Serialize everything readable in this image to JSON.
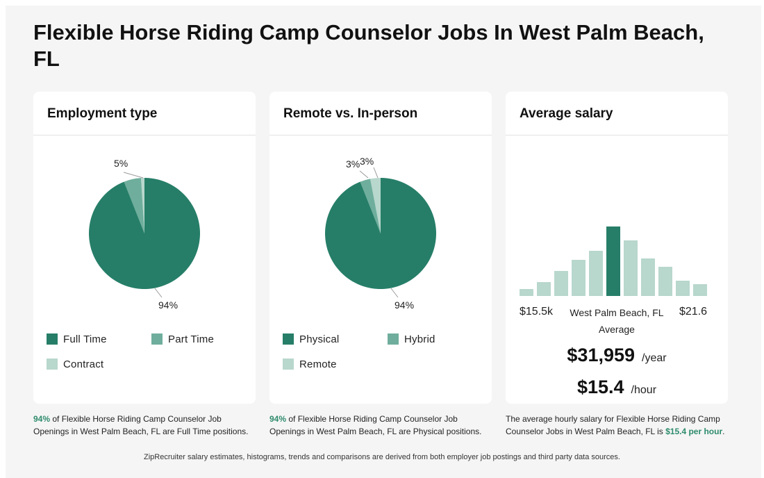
{
  "page": {
    "title": "Flexible Horse Riding Camp Counselor Jobs In West Palm Beach, FL",
    "footer": "ZipRecruiter salary estimates, histograms, trends and comparisons are derived from both employer job postings and third party data sources."
  },
  "colors": {
    "dark": "#267e68",
    "medium": "#6fae9c",
    "light": "#b8d7cd",
    "accent_text": "#2e8b6d"
  },
  "employment": {
    "title": "Employment type",
    "legend": [
      "Full Time",
      "Part Time",
      "Contract"
    ],
    "labels": {
      "large": "94%",
      "small": "5%"
    },
    "caption_pct": "94%",
    "caption_rest": " of Flexible Horse Riding Camp Counselor Job Openings in West Palm Beach, FL are Full Time positions.",
    "chart_data": {
      "type": "pie",
      "categories": [
        "Full Time",
        "Part Time",
        "Contract"
      ],
      "values": [
        94,
        5,
        1
      ]
    }
  },
  "remote": {
    "title": "Remote vs. In-person",
    "legend": [
      "Physical",
      "Hybrid",
      "Remote"
    ],
    "labels": {
      "large": "94%",
      "small_a": "3%",
      "small_b": "3%"
    },
    "caption_pct": "94%",
    "caption_rest": " of Flexible Horse Riding Camp Counselor Job Openings in West Palm Beach, FL are Physical positions.",
    "chart_data": {
      "type": "pie",
      "categories": [
        "Physical",
        "Hybrid",
        "Remote"
      ],
      "values": [
        94,
        3,
        3
      ]
    }
  },
  "salary": {
    "title": "Average salary",
    "range_low": "$15.5k",
    "range_high": "$21.6",
    "location": "West Palm Beach, FL",
    "average_label": "Average",
    "yearly": "$31,959",
    "yearly_unit": "/year",
    "hourly": "$15.4",
    "hourly_unit": "/hour",
    "caption_pre": "The average hourly salary for Flexible Horse Riding Camp Counselor Jobs in West Palm Beach, FL is ",
    "caption_hl": "$15.4 per hour",
    "caption_post": ".",
    "chart_data": {
      "type": "bar",
      "values": [
        10,
        20,
        36,
        52,
        65,
        100,
        80,
        54,
        42,
        22,
        17
      ],
      "highlight_index": 5
    }
  },
  "chart_data": [
    {
      "type": "pie",
      "categories": [
        "Full Time",
        "Part Time",
        "Contract"
      ],
      "values": [
        94,
        5,
        1
      ]
    },
    {
      "type": "pie",
      "categories": [
        "Physical",
        "Hybrid",
        "Remote"
      ],
      "values": [
        94,
        3,
        3
      ]
    },
    {
      "type": "bar",
      "values": [
        10,
        20,
        36,
        52,
        65,
        100,
        80,
        54,
        42,
        22,
        17
      ],
      "highlight_index": 5
    }
  ]
}
